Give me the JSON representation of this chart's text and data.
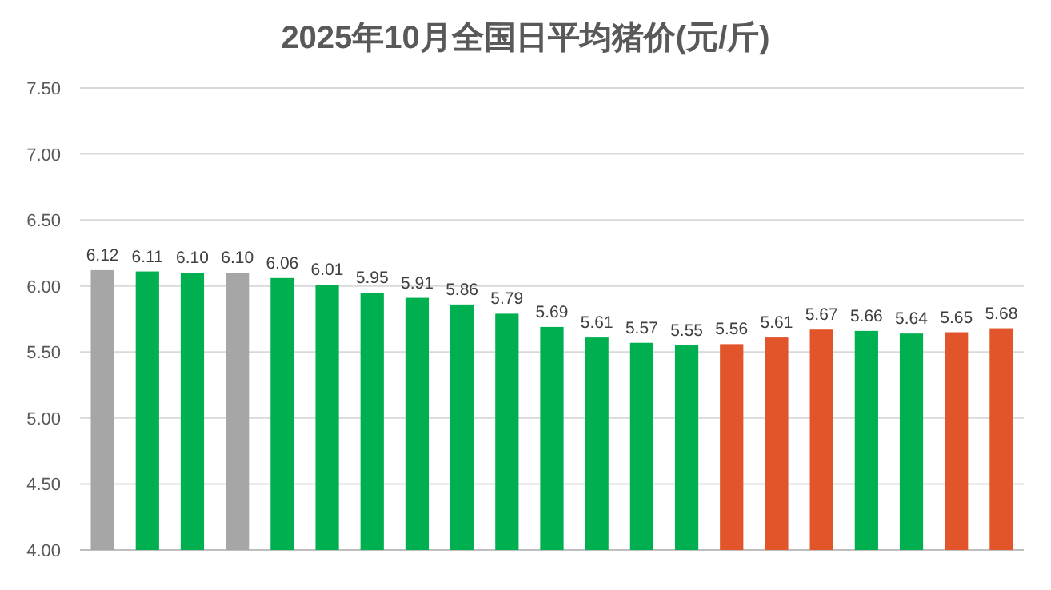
{
  "chart_data": {
    "type": "bar",
    "title": "2025年10月全国日平均猪价(元/斤)",
    "categories": [
      null,
      null,
      null,
      null,
      null,
      null,
      null,
      null,
      null,
      null,
      null,
      null,
      null,
      null,
      null,
      null,
      null,
      null,
      null,
      null,
      null
    ],
    "values": [
      6.12,
      6.11,
      6.1,
      6.1,
      6.06,
      6.01,
      5.95,
      5.91,
      5.86,
      5.79,
      5.69,
      5.61,
      5.57,
      5.55,
      5.56,
      5.61,
      5.67,
      5.66,
      5.64,
      5.65,
      5.68
    ],
    "colors": [
      "#a6a6a6",
      "#00b050",
      "#00b050",
      "#a6a6a6",
      "#00b050",
      "#00b050",
      "#00b050",
      "#00b050",
      "#00b050",
      "#00b050",
      "#00b050",
      "#00b050",
      "#00b050",
      "#00b050",
      "#e2542a",
      "#e2542a",
      "#e2542a",
      "#00b050",
      "#00b050",
      "#e2542a",
      "#e2542a"
    ],
    "ylim": [
      4,
      7.5
    ],
    "yticks": [
      {
        "value": 4,
        "label": "4.00"
      },
      {
        "value": 4.5,
        "label": "4.50"
      },
      {
        "value": 5,
        "label": "5.00"
      },
      {
        "value": 5.5,
        "label": "5.50"
      },
      {
        "value": 6,
        "label": "6.00"
      },
      {
        "value": 6.5,
        "label": "6.50"
      },
      {
        "value": 7,
        "label": "7.00"
      },
      {
        "value": 7.5,
        "label": "7.50"
      }
    ],
    "grid": "y",
    "value_labels": [
      "6.12",
      "6.11",
      "6.10",
      "6.10",
      "6.06",
      "6.01",
      "5.95",
      "5.91",
      "5.86",
      "5.79",
      "5.69",
      "5.61",
      "5.57",
      "5.55",
      "5.56",
      "5.61",
      "5.67",
      "5.66",
      "5.64",
      "5.65",
      "5.68"
    ]
  }
}
